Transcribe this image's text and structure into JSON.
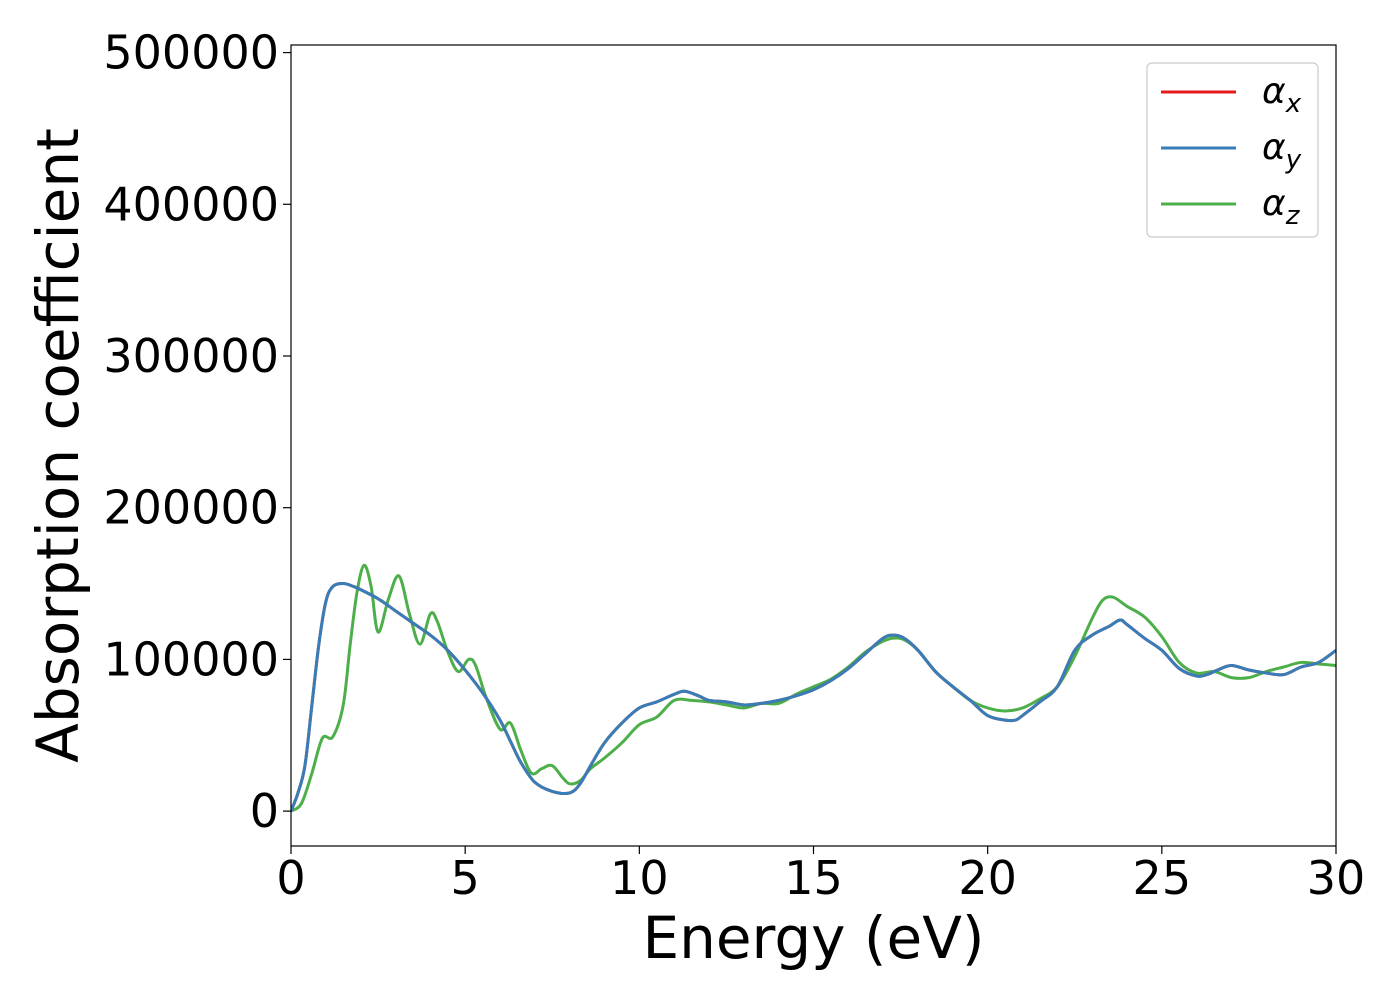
{
  "chart_data": {
    "type": "line",
    "title": "",
    "xlabel": "Energy (eV)",
    "ylabel": "Absorption coefficient",
    "xlim": [
      0,
      30
    ],
    "ylim": [
      -23000,
      505000
    ],
    "xticks": [
      0,
      5,
      10,
      15,
      20,
      25,
      30
    ],
    "xtick_labels": [
      "0",
      "5",
      "10",
      "15",
      "20",
      "25",
      "30"
    ],
    "yticks": [
      0,
      100000,
      200000,
      300000,
      400000,
      500000
    ],
    "ytick_labels": [
      "0",
      "100000",
      "200000",
      "300000",
      "400000",
      "500000"
    ],
    "grid": false,
    "legend": {
      "placement": "top-right"
    },
    "series": [
      {
        "name": "α_x",
        "label_main": "α",
        "label_sub": "x",
        "color": "#e41a1c",
        "x": [
          0,
          0.2,
          0.4,
          0.6,
          0.8,
          1.0,
          1.2,
          1.5,
          1.8,
          2.0,
          2.5,
          3.0,
          3.5,
          4.0,
          4.5,
          5.0,
          5.5,
          6.0,
          6.3,
          6.6,
          7.0,
          7.5,
          8.0,
          8.3,
          8.6,
          9.0,
          9.5,
          10.0,
          10.5,
          11.0,
          11.3,
          11.7,
          12.0,
          12.5,
          13.0,
          13.5,
          14.0,
          14.5,
          15.0,
          15.5,
          16.0,
          16.5,
          17.0,
          17.3,
          17.6,
          18.0,
          18.5,
          19.0,
          19.5,
          20.0,
          20.5,
          20.8,
          21.0,
          21.5,
          22.0,
          22.5,
          23.0,
          23.5,
          23.8,
          24.0,
          24.5,
          25.0,
          25.5,
          26.0,
          26.3,
          26.6,
          27.0,
          27.5,
          28.0,
          28.5,
          29.0,
          29.5,
          30.0
        ],
        "y": [
          0,
          12000,
          30000,
          70000,
          110000,
          138000,
          148000,
          150000,
          148000,
          146000,
          140000,
          132000,
          124000,
          116000,
          106000,
          93000,
          78000,
          60000,
          46000,
          32000,
          19000,
          13000,
          12000,
          18000,
          30000,
          45000,
          58000,
          68000,
          72000,
          77000,
          79000,
          76000,
          73000,
          72000,
          70000,
          71000,
          73000,
          76000,
          80000,
          86000,
          94000,
          104000,
          114000,
          116000,
          114000,
          106000,
          92000,
          82000,
          73000,
          63000,
          60000,
          60000,
          63000,
          72000,
          82000,
          106000,
          116000,
          122000,
          126000,
          123000,
          114000,
          106000,
          94000,
          89000,
          90000,
          93000,
          96000,
          93000,
          91000,
          90000,
          95000,
          98000,
          106000
        ]
      },
      {
        "name": "α_y",
        "label_main": "α",
        "label_sub": "y",
        "color": "#377eb8",
        "x": [
          0,
          0.2,
          0.4,
          0.6,
          0.8,
          1.0,
          1.2,
          1.5,
          1.8,
          2.0,
          2.5,
          3.0,
          3.5,
          4.0,
          4.5,
          5.0,
          5.5,
          6.0,
          6.3,
          6.6,
          7.0,
          7.5,
          8.0,
          8.3,
          8.6,
          9.0,
          9.5,
          10.0,
          10.5,
          11.0,
          11.3,
          11.7,
          12.0,
          12.5,
          13.0,
          13.5,
          14.0,
          14.5,
          15.0,
          15.5,
          16.0,
          16.5,
          17.0,
          17.3,
          17.6,
          18.0,
          18.5,
          19.0,
          19.5,
          20.0,
          20.5,
          20.8,
          21.0,
          21.5,
          22.0,
          22.5,
          23.0,
          23.5,
          23.8,
          24.0,
          24.5,
          25.0,
          25.5,
          26.0,
          26.3,
          26.6,
          27.0,
          27.5,
          28.0,
          28.5,
          29.0,
          29.5,
          30.0
        ],
        "y": [
          0,
          12000,
          30000,
          70000,
          110000,
          138000,
          148000,
          150000,
          148000,
          146000,
          140000,
          132000,
          124000,
          116000,
          106000,
          93000,
          78000,
          60000,
          46000,
          32000,
          19000,
          13000,
          12000,
          18000,
          30000,
          45000,
          58000,
          68000,
          72000,
          77000,
          79000,
          76000,
          73000,
          72000,
          70000,
          71000,
          73000,
          76000,
          80000,
          86000,
          94000,
          104000,
          114000,
          116000,
          114000,
          106000,
          92000,
          82000,
          73000,
          63000,
          60000,
          60000,
          63000,
          72000,
          82000,
          106000,
          116000,
          122000,
          126000,
          123000,
          114000,
          106000,
          94000,
          89000,
          90000,
          93000,
          96000,
          93000,
          91000,
          90000,
          95000,
          98000,
          106000
        ]
      },
      {
        "name": "α_z",
        "label_main": "α",
        "label_sub": "z",
        "color": "#4daf4a",
        "x": [
          0,
          0.3,
          0.6,
          0.9,
          1.2,
          1.5,
          1.7,
          1.9,
          2.1,
          2.3,
          2.5,
          2.8,
          3.1,
          3.4,
          3.7,
          4.0,
          4.2,
          4.5,
          4.8,
          5.1,
          5.3,
          5.6,
          6.0,
          6.3,
          6.6,
          6.9,
          7.2,
          7.5,
          7.8,
          8.0,
          8.3,
          8.6,
          9.0,
          9.5,
          10.0,
          10.5,
          11.0,
          11.5,
          12.0,
          12.5,
          13.0,
          13.5,
          14.0,
          14.5,
          15.0,
          15.5,
          16.0,
          16.5,
          17.0,
          17.3,
          17.6,
          18.0,
          18.5,
          19.0,
          19.5,
          20.0,
          20.5,
          21.0,
          21.5,
          22.0,
          22.5,
          23.0,
          23.3,
          23.6,
          24.0,
          24.5,
          25.0,
          25.5,
          26.0,
          26.5,
          27.0,
          27.5,
          28.0,
          28.5,
          29.0,
          29.5,
          30.0
        ],
        "y": [
          0,
          5000,
          25000,
          48000,
          49000,
          70000,
          110000,
          145000,
          162000,
          148000,
          118000,
          140000,
          155000,
          130000,
          110000,
          130000,
          125000,
          105000,
          92000,
          100000,
          96000,
          75000,
          54000,
          58000,
          40000,
          25000,
          28000,
          30000,
          22000,
          18000,
          20000,
          28000,
          35000,
          45000,
          57000,
          62000,
          73000,
          73000,
          72000,
          70000,
          68000,
          71000,
          71000,
          77000,
          82000,
          87000,
          95000,
          105000,
          112000,
          114000,
          113000,
          106000,
          92000,
          82000,
          73000,
          68000,
          66000,
          68000,
          74000,
          82000,
          102000,
          127000,
          139000,
          141000,
          135000,
          128000,
          115000,
          98000,
          91000,
          92000,
          88000,
          88000,
          92000,
          95000,
          98000,
          97000,
          96000
        ]
      }
    ]
  }
}
